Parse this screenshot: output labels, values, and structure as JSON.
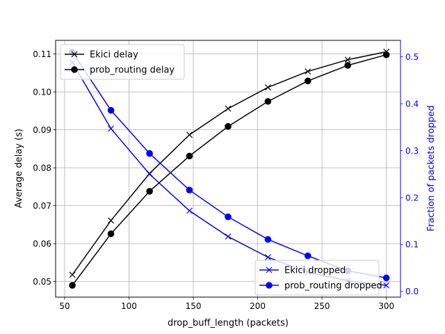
{
  "chart_data": {
    "type": "line",
    "xlabel": "drop_buff_length (packets)",
    "ylabel_left": "Average delay (s)",
    "ylabel_right": "Fraction of packets dropped",
    "xlim": [
      43,
      311
    ],
    "ylim_left": [
      0.0459,
      0.1136
    ],
    "ylim_right": [
      -0.012,
      0.535
    ],
    "xticks": [
      50,
      100,
      150,
      200,
      250,
      300
    ],
    "yticks_left": [
      0.05,
      0.06,
      0.07,
      0.08,
      0.09,
      0.1,
      0.11
    ],
    "yticks_left_labels": [
      "0.05",
      "0.06",
      "0.07",
      "0.08",
      "0.09",
      "0.10",
      "0.11"
    ],
    "yticks_right": [
      0.0,
      0.1,
      0.2,
      0.3,
      0.4,
      0.5
    ],
    "yticks_right_labels": [
      "0.0",
      "0.1",
      "0.2",
      "0.3",
      "0.4",
      "0.5"
    ],
    "grid": true,
    "x": [
      56,
      86,
      116,
      147,
      177,
      208,
      239,
      270,
      300
    ],
    "series": [
      {
        "name": "Ekici delay",
        "axis": "left",
        "color": "#000000",
        "marker": "x",
        "values": [
          0.0518,
          0.0661,
          0.0785,
          0.0887,
          0.0956,
          0.1012,
          0.1054,
          0.1085,
          0.1106
        ]
      },
      {
        "name": "prob_routing delay",
        "axis": "left",
        "color": "#000000",
        "marker": "o",
        "values": [
          0.049,
          0.0626,
          0.0738,
          0.0831,
          0.0909,
          0.0975,
          0.1029,
          0.107,
          0.1098
        ]
      },
      {
        "name": "Ekici dropped",
        "axis": "right",
        "color": "#0000ff",
        "marker": "x",
        "values": [
          0.488,
          0.347,
          0.25,
          0.172,
          0.117,
          0.073,
          0.041,
          0.023,
          0.013
        ]
      },
      {
        "name": "prob_routing dropped",
        "axis": "right",
        "color": "#0000ff",
        "marker": "o",
        "values": [
          0.51,
          0.386,
          0.294,
          0.216,
          0.159,
          0.111,
          0.076,
          0.044,
          0.029
        ]
      }
    ],
    "legend_left": {
      "placement": "upper-left",
      "entries": [
        "Ekici delay",
        "prob_routing delay"
      ]
    },
    "legend_right": {
      "placement": "lower-right",
      "entries": [
        "Ekici dropped",
        "prob_routing dropped"
      ]
    }
  }
}
